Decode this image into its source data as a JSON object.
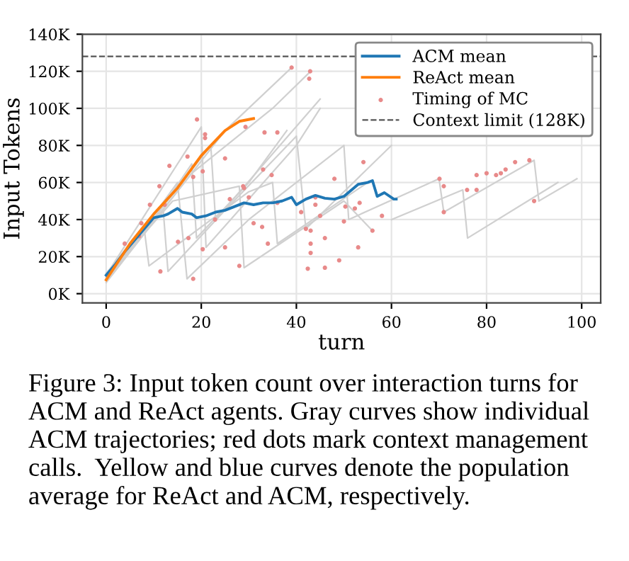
{
  "chart_data": {
    "type": "line",
    "xlabel": "turn",
    "ylabel": "Input Tokens",
    "xlim": [
      -5,
      104
    ],
    "xticks": [
      0,
      20,
      40,
      60,
      80,
      100
    ],
    "ylim": [
      -5000,
      140000
    ],
    "yticks": [
      {
        "value": 0,
        "label": "0K"
      },
      {
        "value": 20000,
        "label": "20K"
      },
      {
        "value": 40000,
        "label": "40K"
      },
      {
        "value": 60000,
        "label": "60K"
      },
      {
        "value": 80000,
        "label": "80K"
      },
      {
        "value": 100000,
        "label": "100K"
      },
      {
        "value": 120000,
        "label": "120K"
      },
      {
        "value": 140000,
        "label": "140K"
      }
    ],
    "grid": true,
    "legend": "top right",
    "line_style": "solid",
    "series": [
      {
        "color": "#d0d0d0",
        "x": [
          0,
          10,
          18,
          19,
          30,
          38
        ],
        "values": [
          8000,
          40000,
          70000,
          30000,
          60000,
          88000
        ]
      },
      {
        "color": "#d0d0d0",
        "x": [
          0,
          12,
          13,
          25,
          40,
          42,
          60
        ],
        "values": [
          9000,
          45000,
          12000,
          45000,
          85000,
          35000,
          80000
        ]
      },
      {
        "color": "#d0d0d0",
        "x": [
          0,
          15,
          17,
          30,
          50,
          51,
          70,
          71,
          90,
          91,
          99
        ],
        "values": [
          7000,
          60000,
          8000,
          40000,
          80000,
          40000,
          62000,
          44000,
          72000,
          50000,
          62000
        ]
      },
      {
        "color": "#d0d0d0",
        "x": [
          0,
          20,
          21,
          40,
          45
        ],
        "values": [
          10000,
          90000,
          25000,
          80000,
          100000
        ]
      },
      {
        "color": "#d0d0d0",
        "x": [
          0,
          25,
          39
        ],
        "values": [
          6000,
          88000,
          122000
        ]
      },
      {
        "color": "#d0d0d0",
        "x": [
          0,
          8,
          9,
          30,
          35,
          36,
          55
        ],
        "values": [
          11000,
          35000,
          15000,
          55000,
          60000,
          27000,
          60000
        ]
      },
      {
        "color": "#d0d0d0",
        "x": [
          0,
          22,
          23,
          45
        ],
        "values": [
          8000,
          80000,
          40000,
          105000
        ]
      },
      {
        "color": "#d0d0d0",
        "x": [
          60,
          75,
          76,
          95
        ],
        "values": [
          40000,
          56000,
          30000,
          60000
        ]
      },
      {
        "color": "#d0d0d0",
        "x": [
          0,
          14,
          28,
          29,
          50,
          56
        ],
        "values": [
          9000,
          50000,
          58000,
          14000,
          50000,
          34000
        ]
      },
      {
        "color": "#d0d0d0",
        "x": [
          0,
          18,
          35,
          43
        ],
        "values": [
          7000,
          65000,
          100000,
          120000
        ]
      },
      {
        "name": "ACM mean",
        "color": "#1f77b4",
        "x": [
          0,
          2,
          4,
          6,
          8,
          10,
          12,
          13,
          15,
          16,
          18,
          19,
          21,
          23,
          25,
          27,
          29,
          31,
          33,
          35,
          37,
          39,
          40,
          42,
          44,
          46,
          48,
          50,
          53,
          55,
          56,
          57,
          58.5,
          60.5,
          61
        ],
        "values": [
          10000,
          16000,
          23000,
          29000,
          35000,
          41000,
          42000,
          43000,
          46000,
          44000,
          43000,
          41000,
          42000,
          44000,
          45000,
          47000,
          49000,
          48000,
          49000,
          49000,
          50000,
          52000,
          48000,
          51000,
          53000,
          51500,
          51000,
          52500,
          59000,
          60000,
          61000,
          52500,
          54500,
          51000,
          51000
        ]
      },
      {
        "name": "ReAct mean",
        "color": "#ff7f0e",
        "x": [
          0,
          5,
          10,
          15,
          20,
          25,
          28,
          31
        ],
        "values": [
          7500,
          27000,
          43000,
          57000,
          74500,
          88000,
          93000,
          94500
        ]
      },
      {
        "name": "Timing of MC",
        "type": "scatter",
        "color": "#e88a8a",
        "x": [
          19.1,
          20.8,
          20.8,
          17.1,
          13.3,
          11.2,
          9.2,
          7.4,
          3.9,
          11.4,
          18.3,
          17.3,
          15.1,
          20.3,
          25,
          28,
          29.3,
          33.3,
          36,
          33,
          34.8,
          25,
          28.8,
          29,
          26,
          30,
          31,
          32.8,
          34,
          36,
          39,
          41,
          42.4,
          42.7,
          42,
          22.9,
          18.3,
          20.3,
          12.3,
          6.9,
          42.9,
          70.1,
          71,
          71,
          77.9,
          75.9,
          77.9,
          80,
          82,
          83,
          84,
          86,
          89,
          90,
          50.3,
          52.3,
          53.3,
          54.1,
          58,
          56,
          53,
          50,
          49,
          46,
          46,
          44,
          45,
          43,
          43,
          43,
          48,
          44
        ],
        "values": [
          94000,
          86000,
          84000,
          74000,
          69000,
          58000,
          48000,
          38000,
          27000,
          12000,
          8000,
          30000,
          28000,
          24000,
          25000,
          15000,
          90000,
          87000,
          87000,
          67000,
          64000,
          73000,
          58000,
          57000,
          51000,
          52000,
          38000,
          36000,
          27000,
          49000,
          122000,
          44000,
          13500,
          116000,
          35000,
          40000,
          63000,
          66000,
          48000,
          31000,
          120000,
          62000,
          58000,
          44000,
          64000,
          56000,
          56000,
          65000,
          64000,
          65000,
          67000,
          71000,
          72000,
          50000,
          47000,
          46000,
          49000,
          71000,
          42000,
          34000,
          25000,
          39000,
          18000,
          30000,
          14000,
          48000,
          42000,
          34000,
          27000,
          22000,
          62000,
          52000
        ]
      }
    ],
    "ref_lines": [
      {
        "axis": "y",
        "value": 128000,
        "label": "Context limit (128K)",
        "color": "#555555",
        "line_style": "dashed"
      }
    ],
    "annotations": [
      "Figure 3: Input token count over interaction turns for ACM and ReAct agents. Gray curves show individual ACM trajectories; red dots mark context management calls.  Yellow and blue curves denote the population average for ReAct and ACM, respectively."
    ]
  }
}
